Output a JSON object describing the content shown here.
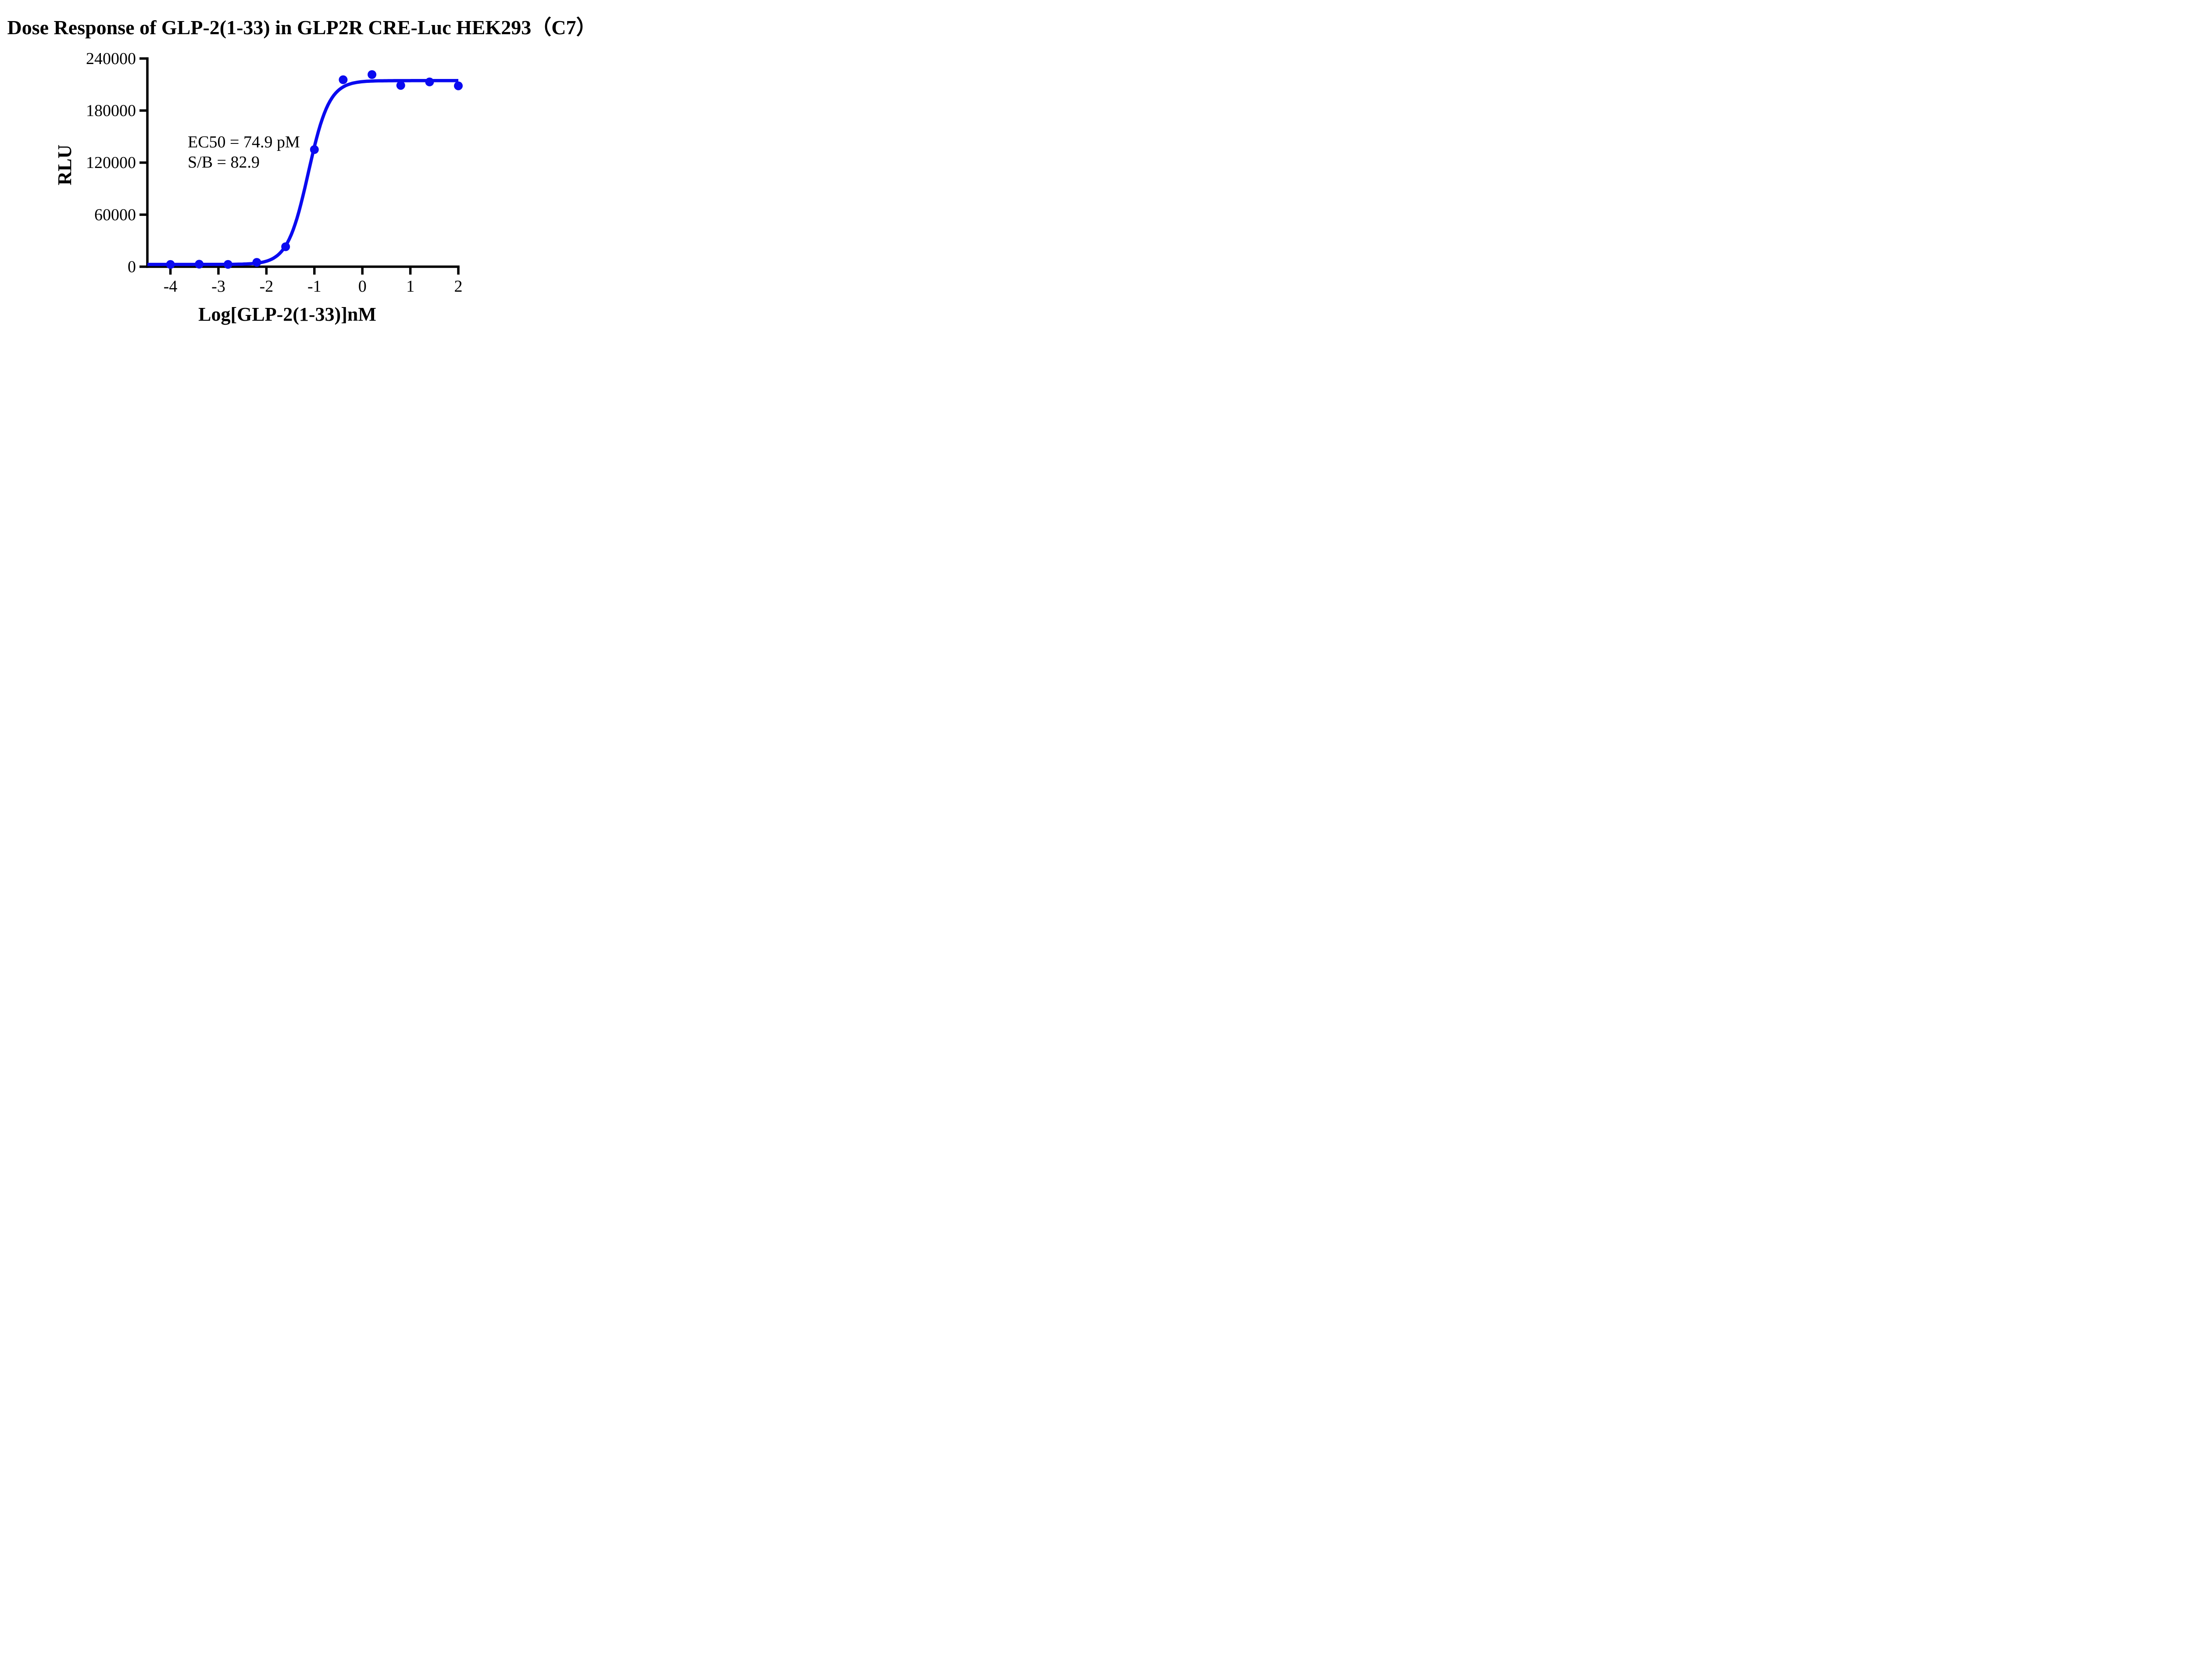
{
  "figure": {
    "background_color": "#ffffff",
    "axis_color": "#000000",
    "curve_color": "#0a0af0"
  },
  "chart_data": {
    "type": "scatter",
    "title": "Dose Response of GLP-2(1-33) in GLP2R CRE-Luc HEK293（C7）",
    "xlabel": "Log[GLP-2(1-33)]nM",
    "ylabel": "RLU",
    "xlim": [
      -4.48,
      2
    ],
    "ylim": [
      0,
      240000
    ],
    "x_ticks": [
      -4,
      -3,
      -2,
      -1,
      0,
      1,
      2
    ],
    "y_ticks": [
      0,
      60000,
      120000,
      180000,
      240000
    ],
    "grid": false,
    "legend_position": "none",
    "series": [
      {
        "name": "GLP-2(1-33)",
        "marker": "circle",
        "color": "#0a0af0",
        "x": [
          -4.0,
          -3.4,
          -2.8,
          -2.2,
          -1.6,
          -1.0,
          -0.4,
          0.2,
          0.8,
          1.4,
          2.0
        ],
        "y": [
          2600,
          2900,
          2700,
          5000,
          23000,
          135000,
          215500,
          221500,
          209000,
          213000,
          208500
        ]
      }
    ],
    "fit_curve": {
      "model": "4PL-sigmoid",
      "bottom": 2600,
      "top": 214500,
      "logEC50": -1.1255,
      "hill_slope": 2.0
    },
    "annotations": [
      "EC50 = 74.9 pM",
      "S/B = 82.9"
    ]
  }
}
